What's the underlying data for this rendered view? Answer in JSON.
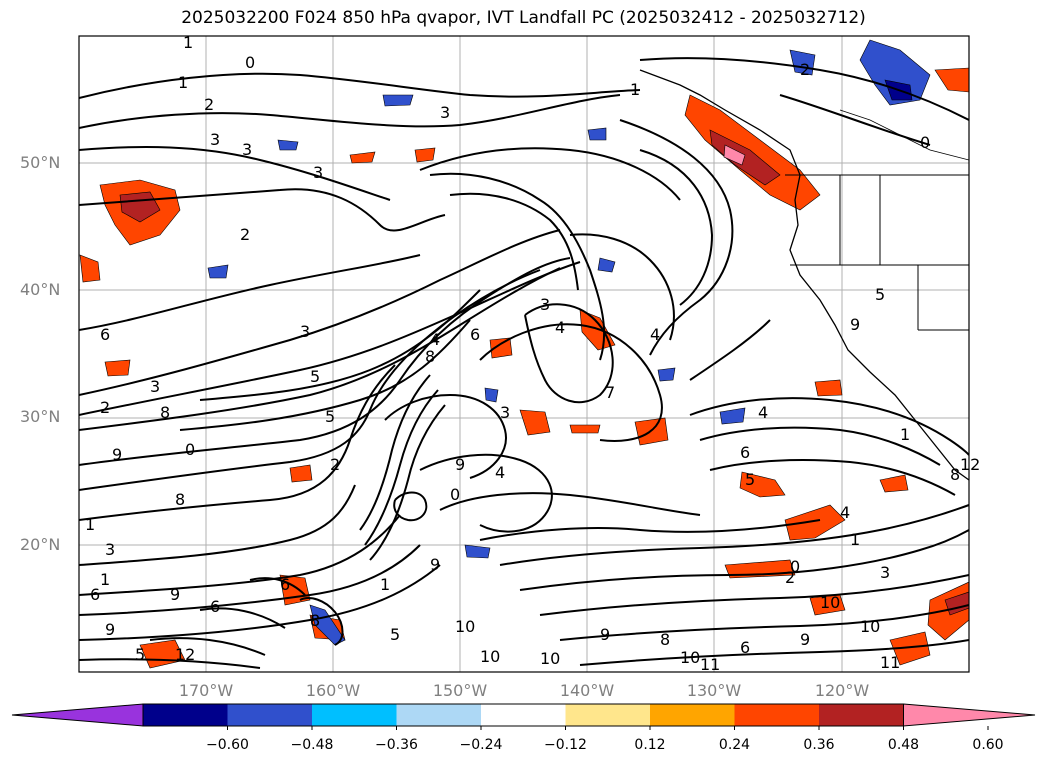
{
  "title": "2025032200 F024 850 hPa qvapor, IVT Landfall PC (2025032412 - 2025032712)",
  "lat_labels": [
    "50°N",
    "40°N",
    "30°N",
    "20°N"
  ],
  "lon_labels": [
    "170°W",
    "160°W",
    "150°W",
    "140°W",
    "130°W",
    "120°W"
  ],
  "colorbar": {
    "colors": [
      "#9933dd",
      "#00008b",
      "#3050cc",
      "#00bfff",
      "#add8f5",
      "#ffffff",
      "#ffe68c",
      "#ffa500",
      "#ff4500",
      "#b22222",
      "#ff88aa"
    ],
    "ticks": [
      "−0.60",
      "−0.48",
      "−0.36",
      "−0.24",
      "−0.12",
      "0.12",
      "0.24",
      "0.36",
      "0.48",
      "0.60"
    ]
  },
  "contour_labels": [
    "1",
    "0",
    "1",
    "2",
    "3",
    "3",
    "3",
    "1",
    "2",
    "0",
    "3",
    "2",
    "3",
    "3",
    "4",
    "4",
    "4",
    "6",
    "5",
    "7",
    "8",
    "8",
    "5",
    "3",
    "4",
    "3",
    "2",
    "4",
    "1",
    "6",
    "8",
    "9",
    "2",
    "0",
    "1",
    "1",
    "3",
    "6",
    "9",
    "6",
    "5",
    "10",
    "9",
    "10",
    "9",
    "10",
    "6",
    "9",
    "9",
    "10",
    "11",
    "12",
    "6",
    "8",
    "11",
    "10",
    "10",
    "0",
    "1",
    "2",
    "4",
    "5",
    "3",
    "1",
    "0",
    "5",
    "9",
    "12",
    "8",
    "6",
    "5",
    "8",
    "9"
  ]
}
